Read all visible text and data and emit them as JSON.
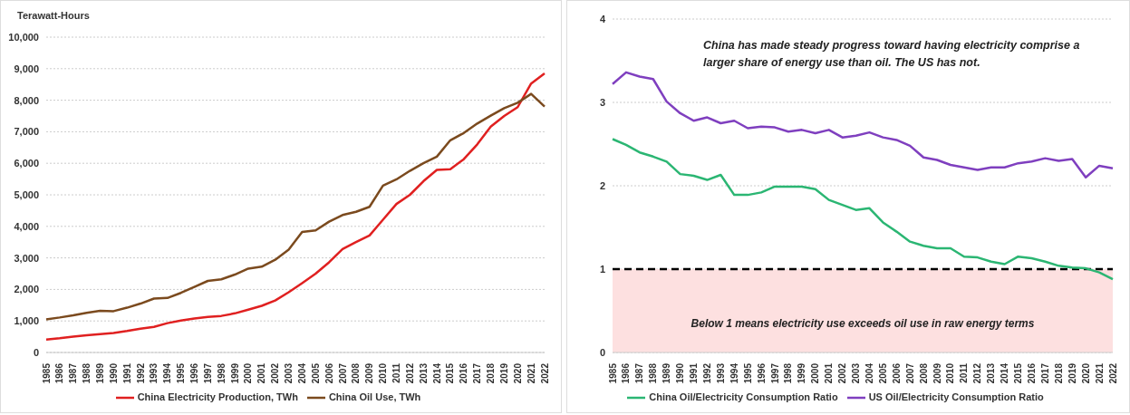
{
  "chart_data": [
    {
      "type": "line",
      "ylabel": "Terawatt-Hours",
      "categories": [
        "1985",
        "1986",
        "1987",
        "1988",
        "1989",
        "1990",
        "1991",
        "1992",
        "1993",
        "1994",
        "1995",
        "1996",
        "1997",
        "1998",
        "1999",
        "2000",
        "2001",
        "2002",
        "2003",
        "2004",
        "2005",
        "2006",
        "2007",
        "2008",
        "2009",
        "2010",
        "2011",
        "2012",
        "2013",
        "2014",
        "2015",
        "2016",
        "2017",
        "2018",
        "2019",
        "2020",
        "2021",
        "2022"
      ],
      "series": [
        {
          "name": "China Electricity Production, TWh",
          "color": "#e02020",
          "values": [
            410,
            450,
            500,
            545,
            585,
            620,
            680,
            755,
            810,
            930,
            1010,
            1080,
            1130,
            1160,
            1240,
            1360,
            1480,
            1650,
            1910,
            2200,
            2500,
            2860,
            3280,
            3500,
            3710,
            4210,
            4710,
            5000,
            5430,
            5790,
            5810,
            6130,
            6600,
            7160,
            7500,
            7780,
            8530,
            8850
          ]
        },
        {
          "name": "China Oil Use, TWh",
          "color": "#7b4a1e",
          "values": [
            1050,
            1110,
            1180,
            1260,
            1320,
            1310,
            1420,
            1550,
            1710,
            1730,
            1890,
            2080,
            2270,
            2320,
            2470,
            2660,
            2720,
            2940,
            3260,
            3820,
            3870,
            4150,
            4360,
            4460,
            4620,
            5290,
            5490,
            5760,
            6000,
            6210,
            6730,
            6960,
            7260,
            7510,
            7750,
            7920,
            8200,
            7800
          ]
        }
      ],
      "ylim": [
        0,
        10000
      ],
      "yticks": [
        0,
        {
          "value": 1000,
          "label": "1,000"
        },
        {
          "value": 2000,
          "label": "2,000"
        },
        {
          "value": 3000,
          "label": "3,000"
        },
        {
          "value": 4000,
          "label": "4,000"
        },
        {
          "value": 5000,
          "label": "5,000"
        },
        {
          "value": 6000,
          "label": "6,000"
        },
        {
          "value": 7000,
          "label": "7,000"
        },
        {
          "value": 8000,
          "label": "8,000"
        },
        {
          "value": 9000,
          "label": "9,000"
        },
        {
          "value": 10000,
          "label": "10,000"
        }
      ],
      "grid": "y",
      "legend": "bottom",
      "line_style": "solid"
    },
    {
      "type": "line",
      "categories": [
        "1985",
        "1986",
        "1987",
        "1988",
        "1989",
        "1990",
        "1991",
        "1992",
        "1993",
        "1994",
        "1995",
        "1996",
        "1997",
        "1998",
        "1999",
        "2000",
        "2001",
        "2002",
        "2003",
        "2004",
        "2005",
        "2006",
        "2007",
        "2008",
        "2009",
        "2010",
        "2011",
        "2012",
        "2013",
        "2014",
        "2015",
        "2016",
        "2017",
        "2018",
        "2019",
        "2020",
        "2021",
        "2022"
      ],
      "series": [
        {
          "name": "China Oil/Electricity Consumption Ratio",
          "color": "#2bb673",
          "values": [
            2.56,
            2.49,
            2.4,
            2.35,
            2.29,
            2.14,
            2.12,
            2.07,
            2.13,
            1.89,
            1.89,
            1.92,
            1.99,
            1.99,
            1.99,
            1.96,
            1.83,
            1.77,
            1.71,
            1.73,
            1.56,
            1.45,
            1.33,
            1.28,
            1.25,
            1.25,
            1.15,
            1.14,
            1.09,
            1.06,
            1.15,
            1.13,
            1.09,
            1.04,
            1.02,
            1.01,
            0.96,
            0.88
          ]
        },
        {
          "name": "US Oil/Electricity Consumption Ratio",
          "color": "#7f3fbf",
          "values": [
            3.22,
            3.36,
            3.31,
            3.28,
            3.01,
            2.87,
            2.78,
            2.82,
            2.75,
            2.78,
            2.69,
            2.71,
            2.7,
            2.65,
            2.67,
            2.63,
            2.67,
            2.58,
            2.6,
            2.64,
            2.58,
            2.55,
            2.48,
            2.34,
            2.31,
            2.25,
            2.22,
            2.19,
            2.22,
            2.22,
            2.27,
            2.29,
            2.33,
            2.3,
            2.32,
            2.1,
            2.24,
            2.21
          ]
        }
      ],
      "ylim": [
        0,
        4
      ],
      "yticks": [
        0,
        1,
        2,
        3,
        4
      ],
      "ref_lines": [
        {
          "axis": "y",
          "value": 1,
          "color": "#000000",
          "line_style": "dashed"
        }
      ],
      "bands": [
        {
          "axis": "y",
          "from": 0,
          "to": 1,
          "label": "Below 1 means electricity use exceeds oil use in raw energy terms",
          "color": "#fde0e0"
        }
      ],
      "annotations": [
        "China has made steady progress toward having electricity comprise a larger share of energy use than oil. The US has not."
      ],
      "grid": "y",
      "legend": "bottom",
      "line_style": "solid"
    }
  ]
}
